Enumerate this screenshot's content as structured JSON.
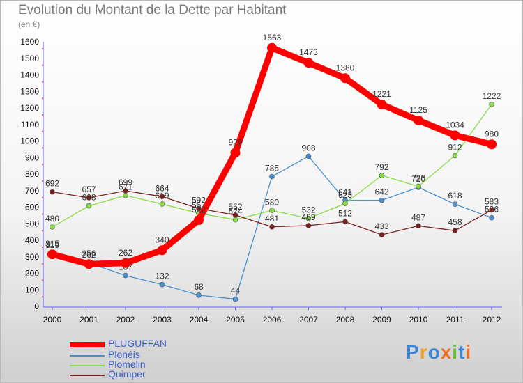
{
  "title": "Evolution du Montant de la Dette par Habitant",
  "subtitle": "(en €)",
  "chart_data": {
    "type": "line",
    "title": "Evolution du Montant de la Dette par Habitant",
    "subtitle": "(en €)",
    "x": [
      "2000",
      "2001",
      "2002",
      "2003",
      "2004",
      "2005",
      "2006",
      "2007",
      "2008",
      "2009",
      "2010",
      "2011",
      "2012"
    ],
    "ylim": [
      0,
      1600
    ],
    "yticks": [
      0,
      100,
      200,
      300,
      400,
      500,
      600,
      700,
      800,
      900,
      1000,
      1100,
      1200,
      1300,
      1400,
      1500,
      1600
    ],
    "grid": false,
    "legend": "bottom-left",
    "series": [
      {
        "name": "PLUGUFFAN",
        "color": "#ff0000",
        "values": [
          315,
          256,
          262,
          340,
          522,
          929,
          1563,
          1473,
          1380,
          1221,
          1125,
          1034,
          980
        ]
      },
      {
        "name": "Plonéis",
        "color": "#4a90d0",
        "values": [
          319,
          262,
          187,
          132,
          68,
          44,
          785,
          908,
          641,
          642,
          720,
          618,
          536
        ]
      },
      {
        "name": "Plomelin",
        "color": "#88dd44",
        "values": [
          480,
          608,
          671,
          619,
          563,
          524,
          580,
          532,
          623,
          792,
          726,
          912,
          1222
        ]
      },
      {
        "name": "Quimper",
        "color": "#7a1f1f",
        "values": [
          692,
          657,
          699,
          664,
          592,
          552,
          481,
          489,
          512,
          433,
          487,
          458,
          583
        ]
      }
    ]
  },
  "logo": {
    "letters": [
      "P",
      "r",
      "o",
      "x",
      "i",
      "t",
      "i"
    ],
    "colors": [
      "#3a85d8",
      "#f0a020",
      "#3a85d8",
      "#f07020",
      "#60c030",
      "#3a85d8",
      "#f07020"
    ]
  }
}
